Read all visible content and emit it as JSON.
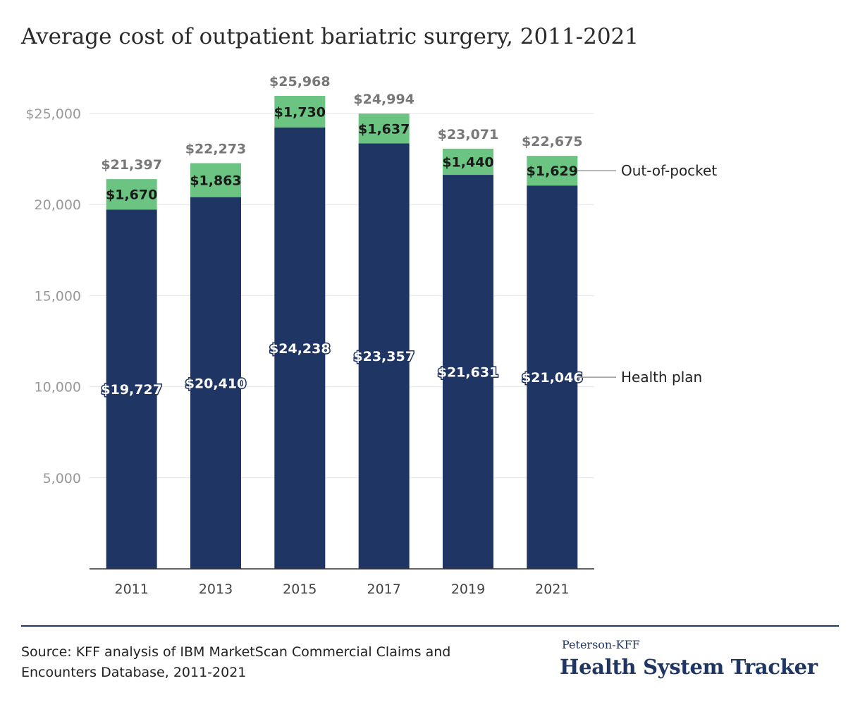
{
  "title": "Average cost of outpatient bariatric surgery, 2011-2021",
  "source": "Source: KFF analysis of IBM MarketScan Commercial Claims and Encounters Database, 2011-2021",
  "brand": {
    "top": "Peterson-KFF",
    "main": "Health System Tracker"
  },
  "colors": {
    "health_plan": "#1f3564",
    "out_of_pocket": "#6cc483",
    "grid": "#e4e4e4",
    "tick_text": "#999999",
    "total_text": "#777777"
  },
  "chart_data": {
    "type": "bar",
    "stacked": true,
    "categories": [
      "2011",
      "2013",
      "2015",
      "2017",
      "2019",
      "2021"
    ],
    "series": [
      {
        "name": "Health plan",
        "values": [
          19727,
          20410,
          24238,
          23357,
          21631,
          21046
        ],
        "labels": [
          "$19,727",
          "$20,410",
          "$24,238",
          "$23,357",
          "$21,631",
          "$21,046"
        ]
      },
      {
        "name": "Out-of-pocket",
        "values": [
          1670,
          1863,
          1730,
          1637,
          1440,
          1629
        ],
        "labels": [
          "$1,670",
          "$1,863",
          "$1,730",
          "$1,637",
          "$1,440",
          "$1,629"
        ]
      }
    ],
    "totals": [
      "$21,397",
      "$22,273",
      "$25,968",
      "$24,994",
      "$23,071",
      "$22,675"
    ],
    "yticks": [
      5000,
      10000,
      15000,
      20000,
      25000
    ],
    "ytick_labels": [
      "5,000",
      "10,000",
      "15,000",
      "20,000",
      "$25,000"
    ],
    "ylim": [
      0,
      25000
    ],
    "xlabel": "",
    "ylabel": "",
    "grid": true,
    "legend": "direct labels at right of last bar"
  }
}
